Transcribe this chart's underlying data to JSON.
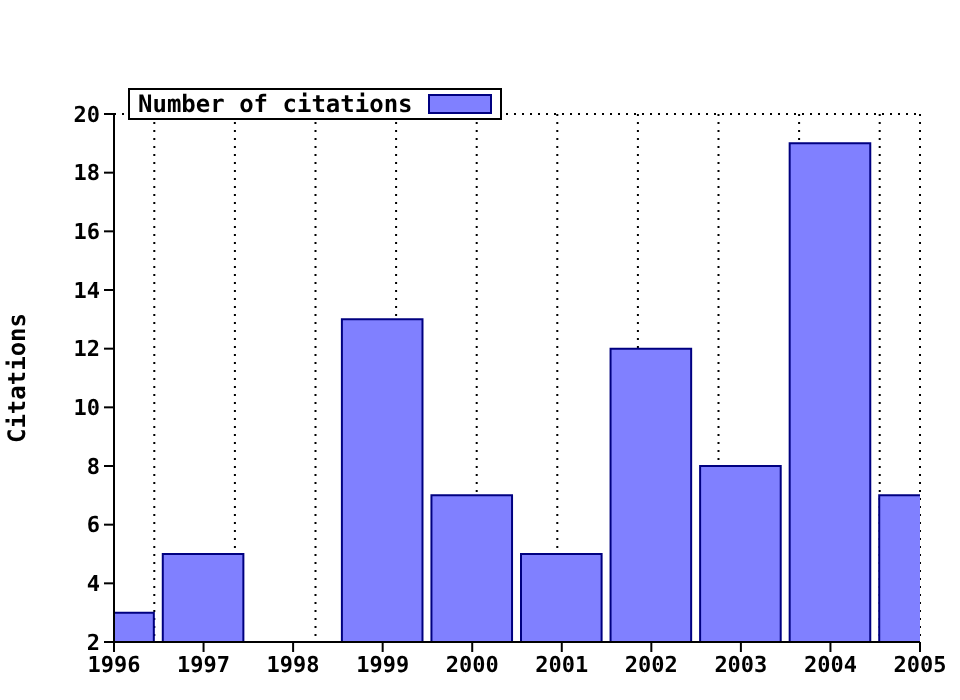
{
  "chart_data": {
    "type": "bar",
    "ylabel": "Citations",
    "x": [
      1996,
      1997,
      1998,
      1999,
      2000,
      2001,
      2002,
      2003,
      2004,
      2005
    ],
    "series": [
      {
        "name": "Number of citations",
        "color": "#8080ff",
        "values": [
          3,
          5,
          2,
          13,
          7,
          5,
          12,
          8,
          19,
          7
        ]
      }
    ],
    "xlim": [
      1996,
      2005
    ],
    "xticks": [
      1996,
      1997,
      1998,
      1999,
      2000,
      2001,
      2002,
      2003,
      2004,
      2005
    ],
    "ylim": [
      2,
      20
    ],
    "yticks": [
      2,
      4,
      6,
      8,
      10,
      12,
      14,
      16,
      18,
      20
    ],
    "grid": true,
    "legend": "top left"
  }
}
